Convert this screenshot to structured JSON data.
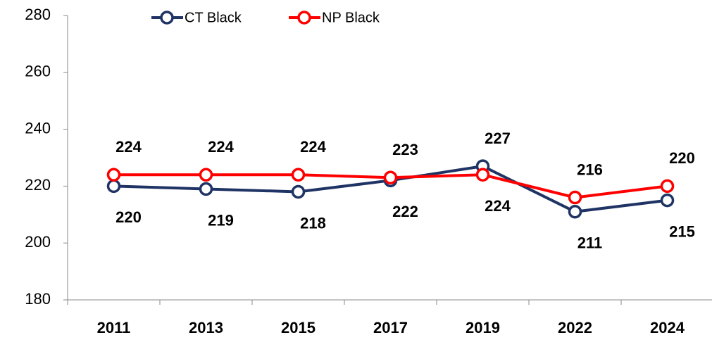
{
  "chart_data": {
    "type": "line",
    "categories": [
      "2011",
      "2013",
      "2015",
      "2017",
      "2019",
      "2022",
      "2024"
    ],
    "series": [
      {
        "name": "CT Black",
        "color": "#1f3464",
        "values": [
          220,
          219,
          218,
          222,
          227,
          211,
          215
        ]
      },
      {
        "name": "NP Black",
        "color": "#ff0000",
        "values": [
          224,
          224,
          224,
          223,
          224,
          216,
          220
        ]
      }
    ],
    "ylim": [
      180,
      280
    ],
    "yticks": [
      180,
      200,
      220,
      240,
      260,
      280
    ],
    "legend": "top"
  }
}
